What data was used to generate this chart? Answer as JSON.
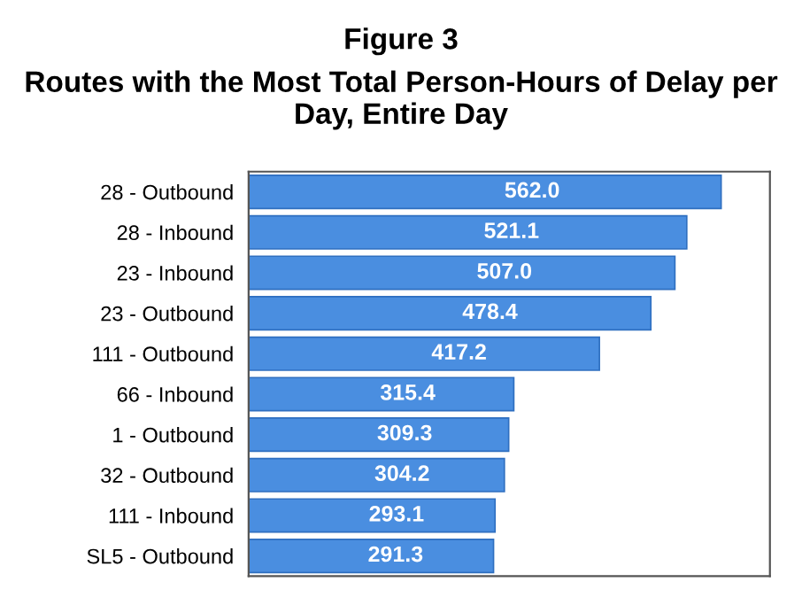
{
  "chart_data": {
    "type": "bar",
    "orientation": "horizontal",
    "title": "Figure 3",
    "subtitle": "Routes with the Most Total Person-Hours of Delay per Day, Entire Day",
    "categories": [
      "28 - Outbound",
      "28 - Inbound",
      "23 - Inbound",
      "23 - Outbound",
      "111 - Outbound",
      "66 - Inbound",
      "1 - Outbound",
      "32 - Outbound",
      "111 - Inbound",
      "SL5 - Outbound"
    ],
    "values": [
      562.0,
      521.1,
      507.0,
      478.4,
      417.2,
      315.4,
      309.3,
      304.2,
      293.1,
      291.3
    ],
    "value_labels": [
      "562.0",
      "521.1",
      "507.0",
      "478.4",
      "417.2",
      "315.4",
      "309.3",
      "304.2",
      "293.1",
      "291.3"
    ],
    "color": "#4a8ee0",
    "xlim": [
      0,
      620
    ],
    "tick_labels": "y",
    "grid": false,
    "legend": false
  }
}
